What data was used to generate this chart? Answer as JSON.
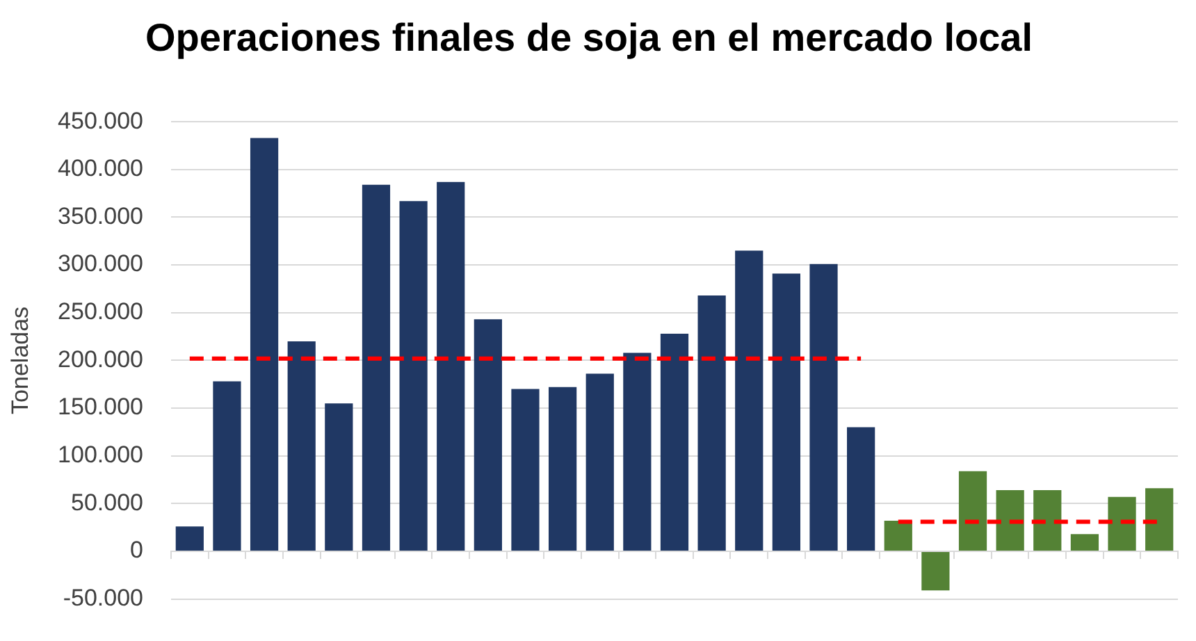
{
  "chart_data": {
    "type": "bar",
    "title": "Operaciones finales de soja en el mercado local",
    "ylabel": "Toneladas",
    "categories": [
      null,
      null,
      null,
      null,
      null,
      null,
      null,
      null,
      null,
      null,
      null,
      null,
      null,
      null,
      null,
      null,
      null,
      null,
      null,
      null,
      null,
      null,
      null,
      null,
      null,
      null,
      null
    ],
    "series": [
      {
        "colors": [
          "#203864",
          "#203864",
          "#203864",
          "#203864",
          "#203864",
          "#203864",
          "#203864",
          "#203864",
          "#203864",
          "#203864",
          "#203864",
          "#203864",
          "#203864",
          "#203864",
          "#203864",
          "#203864",
          "#203864",
          "#203864",
          "#203864",
          "#548235",
          "#548235",
          "#548235",
          "#548235",
          "#548235",
          "#548235",
          "#548235",
          "#548235"
        ],
        "values": [
          26000,
          178000,
          433000,
          220000,
          155000,
          384000,
          367000,
          387000,
          243000,
          170000,
          172000,
          186000,
          208000,
          228000,
          268000,
          315000,
          291000,
          301000,
          130000,
          32000,
          -41000,
          84000,
          64000,
          64000,
          18000,
          57000,
          66000
        ]
      },
      {
        "type": "line",
        "color": "#ff0000",
        "line_style": "dashed",
        "marker": "none",
        "values": [
          202000,
          202000,
          202000,
          202000,
          202000,
          202000,
          202000,
          202000,
          202000,
          202000,
          202000,
          202000,
          202000,
          202000,
          202000,
          202000,
          202000,
          202000,
          202000,
          null,
          null,
          null,
          null,
          null,
          null,
          null,
          null
        ]
      },
      {
        "type": "line",
        "color": "#ff0000",
        "line_style": "dashed",
        "marker": "none",
        "values": [
          null,
          null,
          null,
          null,
          null,
          null,
          null,
          null,
          null,
          null,
          null,
          null,
          null,
          null,
          null,
          null,
          null,
          null,
          null,
          31000,
          31000,
          31000,
          31000,
          31000,
          31000,
          31000,
          31000
        ]
      }
    ],
    "ylim": [
      -50000,
      450000
    ],
    "yticks": [
      {
        "value": -50000,
        "label": "-50.000"
      },
      {
        "value": 0,
        "label": "0"
      },
      {
        "value": 50000,
        "label": "50.000"
      },
      {
        "value": 100000,
        "label": "100.000"
      },
      {
        "value": 150000,
        "label": "150.000"
      },
      {
        "value": 200000,
        "label": "200.000"
      },
      {
        "value": 250000,
        "label": "250.000"
      },
      {
        "value": 300000,
        "label": "300.000"
      },
      {
        "value": 350000,
        "label": "350.000"
      },
      {
        "value": 400000,
        "label": "400.000"
      },
      {
        "value": 450000,
        "label": "450.000"
      }
    ],
    "grid": "y",
    "legend": false,
    "tick_labels": "y"
  }
}
